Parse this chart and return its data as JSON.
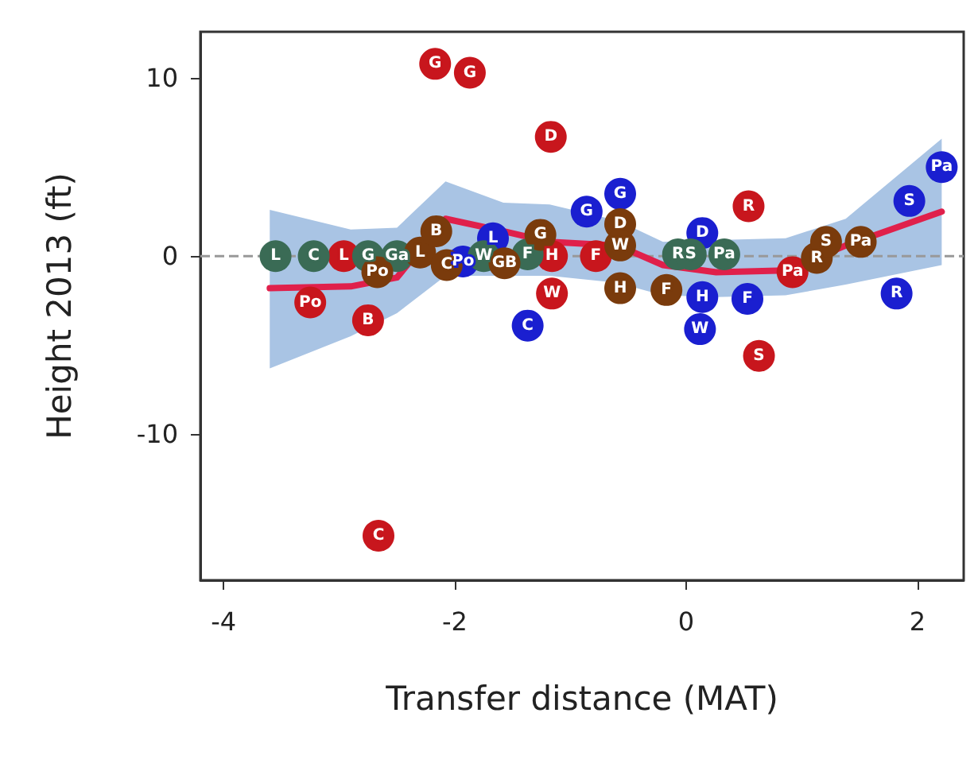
{
  "chart_data": {
    "type": "scatter",
    "xlabel": "Transfer distance (MAT)",
    "ylabel": "Height 2013 (ft)",
    "xlim": [
      -4.2,
      2.4
    ],
    "xticks": [
      -4,
      -2,
      0,
      2
    ],
    "ylim": [
      -18.2,
      12.6
    ],
    "yticks": [
      -10,
      0,
      10
    ],
    "grid": false,
    "marker": "circle",
    "ref_lines": [
      {
        "axis": "y",
        "value": 0,
        "color": "#999999",
        "line_style": "dashed"
      }
    ],
    "series": [
      {
        "type": "line",
        "color": "#e0204b",
        "marker": "none",
        "x": [
          -3.6,
          -2.9,
          -2.5,
          -2.08,
          -1.58,
          -1.18,
          -0.59,
          -0.2,
          0.26,
          0.86,
          1.38,
          2.21
        ],
        "values": [
          -1.8,
          -1.7,
          -1.2,
          2.1,
          1.4,
          0.8,
          0.6,
          -0.5,
          -0.9,
          -0.8,
          0.6,
          2.5
        ],
        "lower": [
          -6.3,
          -4.5,
          -3.2,
          -1.1,
          -1.1,
          -1.1,
          -1.5,
          -2.2,
          -2.3,
          -2.2,
          -1.6,
          -0.5
        ],
        "upper": [
          2.6,
          1.5,
          1.6,
          4.2,
          3.0,
          2.9,
          2.0,
          0.8,
          0.9,
          1.0,
          2.1,
          6.6
        ]
      },
      {
        "color": "#c8161d",
        "x": [
          -2.17,
          -1.87,
          -1.17,
          -2.96,
          -3.25,
          -2.75,
          -2.66,
          -1.16,
          -1.16,
          -0.78,
          0.54,
          0.63,
          0.92
        ],
        "values": [
          10.8,
          10.3,
          6.7,
          0,
          -2.6,
          -3.6,
          -15.7,
          0,
          -2.1,
          0,
          2.8,
          -5.6,
          -0.9
        ],
        "value_labels": [
          "G",
          "G",
          "D",
          "L",
          "Po",
          "B",
          "C",
          "H",
          "W",
          "F",
          "R",
          "S",
          "Pa"
        ]
      },
      {
        "color": "#1a1fd0",
        "x": [
          -0.86,
          -0.57,
          -1.67,
          -1.93,
          -1.37,
          0.14,
          0.14,
          0.12,
          0.53,
          1.93,
          2.21,
          1.82
        ],
        "values": [
          2.5,
          3.5,
          1.0,
          -0.3,
          -3.9,
          1.3,
          -2.3,
          -4.1,
          -2.4,
          3.1,
          5.0,
          -2.1
        ],
        "value_labels": [
          "G",
          "G",
          "L",
          "Po",
          "C",
          "D",
          "H",
          "W",
          "F",
          "S",
          "Pa",
          "R"
        ]
      },
      {
        "color": "#3a6b55",
        "x": [
          -3.55,
          -3.22,
          -2.75,
          -2.5,
          -1.75,
          -1.37,
          -0.07,
          0.04,
          0.33
        ],
        "values": [
          0,
          0,
          0,
          0,
          0,
          0.1,
          0.1,
          0.1,
          0.1
        ],
        "value_labels": [
          "L",
          "C",
          "G",
          "Ga",
          "W",
          "F",
          "R",
          "S",
          "Pa"
        ]
      },
      {
        "color": "#7a3b0c",
        "x": [
          -2.3,
          -2.67,
          -2.16,
          -2.07,
          -1.57,
          -1.26,
          -0.57,
          -0.57,
          -0.57,
          -0.17,
          1.13,
          1.21,
          1.51
        ],
        "values": [
          0.2,
          -0.9,
          1.4,
          -0.5,
          -0.4,
          1.2,
          1.8,
          0.6,
          -1.8,
          -1.9,
          -0.1,
          0.8,
          0.8
        ],
        "value_labels": [
          "L",
          "Po",
          "B",
          "C",
          "GB",
          "G",
          "D",
          "W",
          "H",
          "F",
          "R",
          "S",
          "Pa"
        ]
      }
    ]
  }
}
